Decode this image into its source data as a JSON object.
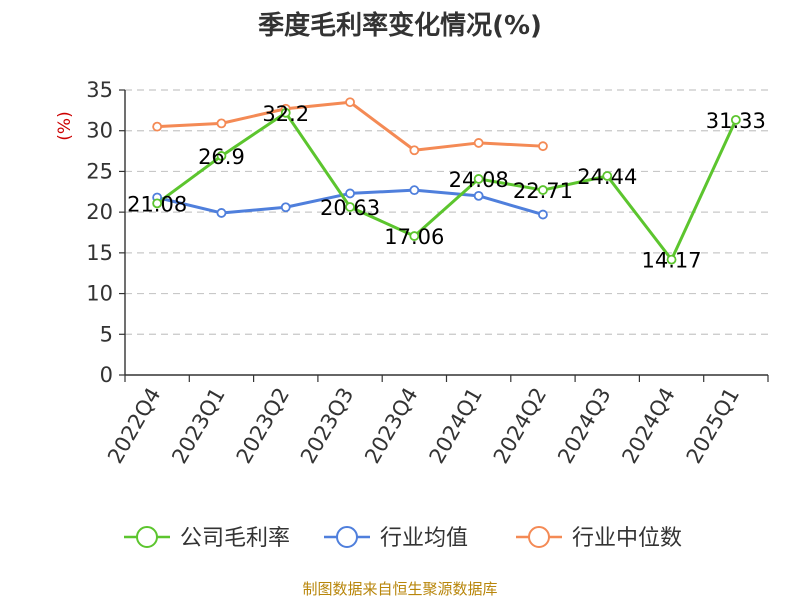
{
  "chart_data": {
    "type": "line",
    "title": "季度毛利率变化情况(%)",
    "ylabel": "(%)",
    "xlabel": "",
    "ylim": [
      0,
      35
    ],
    "yticks": [
      0,
      5,
      10,
      15,
      20,
      25,
      30,
      35
    ],
    "grid": true,
    "legend_position": "bottom",
    "categories": [
      "2022Q4",
      "2023Q1",
      "2023Q2",
      "2023Q3",
      "2023Q4",
      "2024Q1",
      "2024Q2",
      "2024Q3",
      "2024Q4",
      "2025Q1"
    ],
    "series": [
      {
        "name": "公司毛利率",
        "color": "#5cc52e",
        "values": [
          21.08,
          26.9,
          32.2,
          20.63,
          17.06,
          24.08,
          22.71,
          24.44,
          14.17,
          31.33
        ],
        "labels": [
          "21.08",
          "26.9",
          "32.2",
          "20.63",
          "17.06",
          "24.08",
          "22.71",
          "24.44",
          "14.17",
          "31.33"
        ]
      },
      {
        "name": "行业均值",
        "color": "#4f7fdc",
        "values": [
          21.8,
          19.9,
          20.6,
          22.3,
          22.7,
          22.0,
          19.7,
          null,
          null,
          null
        ]
      },
      {
        "name": "行业中位数",
        "color": "#f48a55",
        "values": [
          30.5,
          30.9,
          32.7,
          33.5,
          27.6,
          28.5,
          28.1,
          null,
          null,
          null
        ]
      }
    ]
  },
  "source_text": "制图数据来自恒生聚源数据库"
}
